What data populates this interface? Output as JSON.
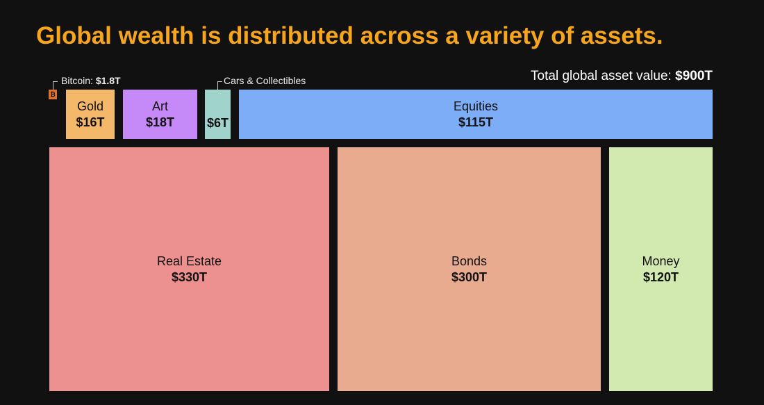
{
  "title": "Global wealth is distributed across a variety of assets.",
  "total_label": "Total global asset value:",
  "total_value": "$900T",
  "chart_data": {
    "type": "treemap",
    "title": "Global wealth is distributed across a variety of assets.",
    "unit": "trillion USD",
    "total": 900,
    "items": [
      {
        "name": "Bitcoin",
        "value": 1.8,
        "label": "$1.8T",
        "color": "#e0702a"
      },
      {
        "name": "Gold",
        "value": 16,
        "label": "$16T",
        "color": "#f4b86b"
      },
      {
        "name": "Art",
        "value": 18,
        "label": "$18T",
        "color": "#c58af7"
      },
      {
        "name": "Cars & Collectibles",
        "value": 6,
        "label": "$6T",
        "color": "#9fd3cc"
      },
      {
        "name": "Equities",
        "value": 115,
        "label": "$115T",
        "color": "#7eadf8"
      },
      {
        "name": "Real Estate",
        "value": 330,
        "label": "$330T",
        "color": "#ec9190"
      },
      {
        "name": "Bonds",
        "value": 300,
        "label": "$300T",
        "color": "#e9ab90"
      },
      {
        "name": "Money",
        "value": 120,
        "label": "$120T",
        "color": "#d2e9b0"
      }
    ]
  },
  "notes": {
    "bitcoin_prefix": "Bitcoin: ",
    "bitcoin_icon": "bitcoin-icon",
    "bitcoin_glyph": "₿"
  }
}
